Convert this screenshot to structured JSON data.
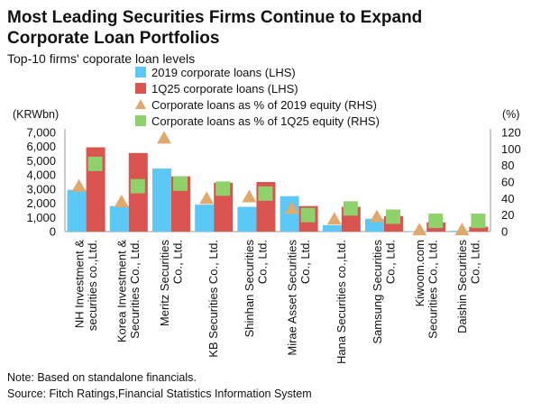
{
  "title_line1": "Most Leading Securities Firms Continue to Expand",
  "title_line2": "Corporate Loan Portfolios",
  "subtitle": "Top-10 firms' coporate loan levels",
  "note": "Note: Based on standalone financials.",
  "source": "Source: Fitch Ratings,Financial Statistics Information System",
  "colors": {
    "loans2019": "#5bc8f5",
    "loans1q25": "#d9534f",
    "pct2019": "#e0a96d",
    "pct1q25": "#8fd16a"
  },
  "chart_data": {
    "type": "bar",
    "title": "Top-10 firms' coporate loan levels",
    "ylabel_left": "(KRWbn)",
    "ylabel_right": "(%)",
    "ylim_left": [
      0,
      7000
    ],
    "yticks_left": [
      "0",
      "1,000",
      "2,000",
      "3,000",
      "4,000",
      "5,000",
      "6,000",
      "7,000"
    ],
    "ylim_right": [
      0,
      120
    ],
    "yticks_right": [
      "0",
      "20",
      "40",
      "60",
      "80",
      "100",
      "120"
    ],
    "legend_position": "top",
    "categories": [
      [
        "NH Investment &",
        "securities co.,Ltd."
      ],
      [
        "Korea Investment &",
        "Securities Co., Ltd."
      ],
      [
        "Meritz Securities",
        "Co., Ltd."
      ],
      [
        "KB Securities Co., Ltd."
      ],
      [
        "Shinhan Securities",
        "Co., Ltd."
      ],
      [
        "Mirae Asset Securities",
        "Co., Ltd."
      ],
      [
        "Hana Securities co.,Ltd."
      ],
      [
        "Samsung Securities",
        "Co., Ltd."
      ],
      [
        "Kiwoom.com",
        "Securities Co., Ltd."
      ],
      [
        "Daishin Securities",
        "Co., Ltd."
      ]
    ],
    "series": [
      {
        "name": "2019 corporate loans (LHS)",
        "kind": "bar",
        "axis": "left",
        "values": [
          2950,
          1800,
          4450,
          1900,
          1750,
          2500,
          450,
          900,
          30,
          50
        ]
      },
      {
        "name": "1Q25 corporate loans (LHS)",
        "kind": "bar",
        "axis": "left",
        "values": [
          5950,
          5550,
          3900,
          3450,
          3500,
          1800,
          1750,
          1100,
          650,
          350
        ]
      },
      {
        "name": "Corporate loans as % of 2019 equity (RHS)",
        "kind": "marker",
        "marker": "triangle",
        "axis": "right",
        "values": [
          55,
          36,
          113,
          40,
          42,
          28,
          15,
          18,
          2,
          2
        ]
      },
      {
        "name": "Corporate loans as % of 1Q25 equity (RHS)",
        "kind": "marker",
        "marker": "square",
        "axis": "right",
        "values": [
          82,
          55,
          58,
          52,
          46,
          20,
          28,
          18,
          13,
          13
        ]
      }
    ]
  }
}
